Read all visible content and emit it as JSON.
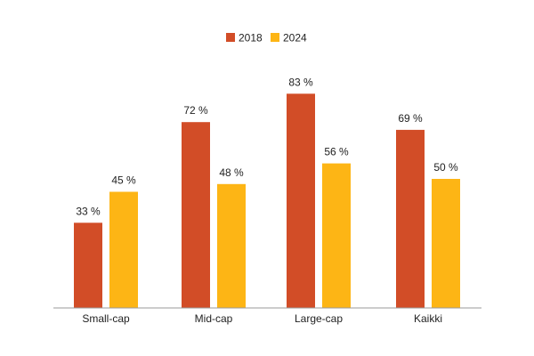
{
  "chart_data": {
    "type": "bar",
    "categories": [
      "Small-cap",
      "Mid-cap",
      "Large-cap",
      "Kaikki"
    ],
    "series": [
      {
        "name": "2018",
        "values": [
          33,
          72,
          83,
          69
        ],
        "color": "#d24d27"
      },
      {
        "name": "2024",
        "values": [
          45,
          48,
          56,
          50
        ],
        "color": "#fdb515"
      }
    ],
    "value_suffix": " %",
    "ylim": [
      0,
      100
    ],
    "grid": false,
    "legend_position": "top-center",
    "axis_color": "#999999"
  }
}
